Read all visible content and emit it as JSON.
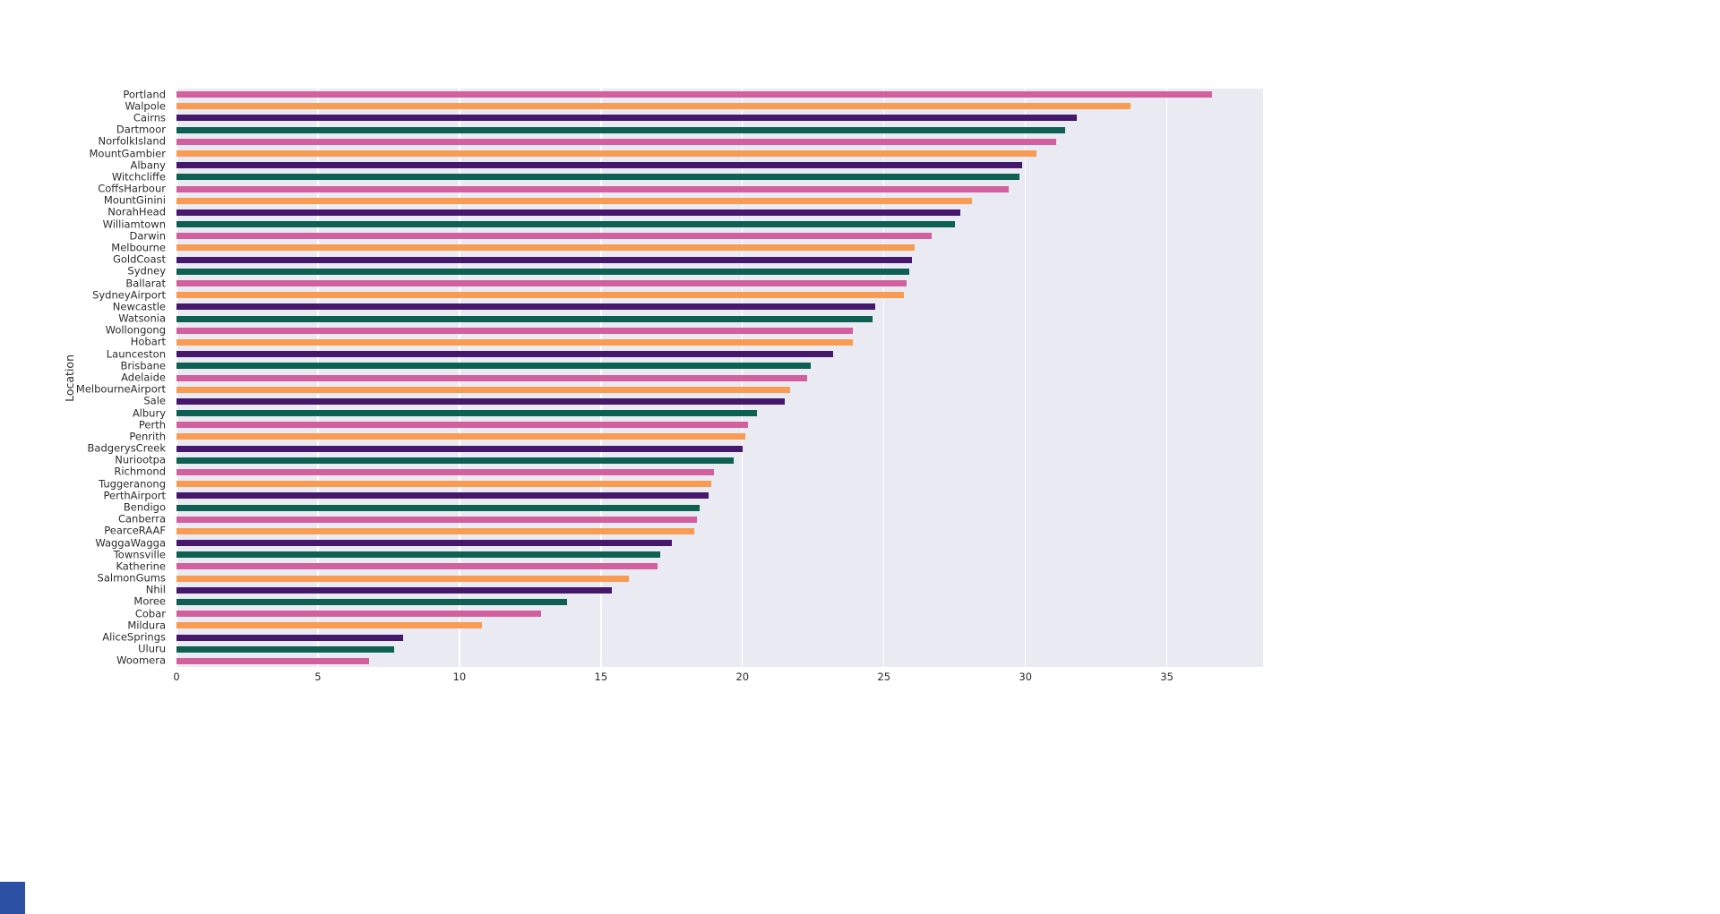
{
  "figure": {
    "background": "#ffffff",
    "plot_background": "#eaeaf2",
    "grid_color": "#ffffff",
    "text_color": "#2b2b2b",
    "corner_square_color": "#2c50a4"
  },
  "chart_data": {
    "type": "bar",
    "orientation": "horizontal",
    "title": "",
    "xlabel": "",
    "ylabel": "Location",
    "xlim": [
      0,
      38.4
    ],
    "xticks": [
      0,
      5,
      10,
      15,
      20,
      25,
      30,
      35
    ],
    "grid": true,
    "legend": "none",
    "bar_width_fraction": 0.5,
    "palette": [
      "#d2609e",
      "#f99b52",
      "#46186c",
      "#0e6152"
    ],
    "categories": [
      "Portland",
      "Walpole",
      "Cairns",
      "Dartmoor",
      "NorfolkIsland",
      "MountGambier",
      "Albany",
      "Witchcliffe",
      "CoffsHarbour",
      "MountGinini",
      "NorahHead",
      "Williamtown",
      "Darwin",
      "Melbourne",
      "GoldCoast",
      "Sydney",
      "Ballarat",
      "SydneyAirport",
      "Newcastle",
      "Watsonia",
      "Wollongong",
      "Hobart",
      "Launceston",
      "Brisbane",
      "Adelaide",
      "MelbourneAirport",
      "Sale",
      "Albury",
      "Perth",
      "Penrith",
      "BadgerysCreek",
      "Nuriootpa",
      "Richmond",
      "Tuggeranong",
      "PerthAirport",
      "Bendigo",
      "Canberra",
      "PearceRAAF",
      "WaggaWagga",
      "Townsville",
      "Katherine",
      "SalmonGums",
      "Nhil",
      "Moree",
      "Cobar",
      "Mildura",
      "AliceSprings",
      "Uluru",
      "Woomera"
    ],
    "values": [
      36.6,
      33.7,
      31.8,
      31.4,
      31.1,
      30.4,
      29.9,
      29.8,
      29.4,
      28.1,
      27.7,
      27.5,
      26.7,
      26.1,
      26.0,
      25.9,
      25.8,
      25.7,
      24.7,
      24.6,
      23.9,
      23.9,
      23.2,
      22.4,
      22.3,
      21.7,
      21.5,
      20.5,
      20.2,
      20.1,
      20.0,
      19.7,
      19.0,
      18.9,
      18.8,
      18.5,
      18.4,
      18.3,
      17.5,
      17.1,
      17.0,
      16.0,
      15.4,
      13.8,
      12.9,
      10.8,
      8.0,
      7.7,
      6.8
    ]
  }
}
